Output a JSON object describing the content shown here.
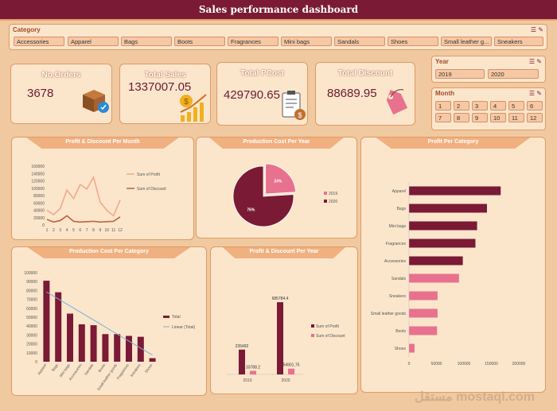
{
  "title": "Sales performance dashboard",
  "watermark": "مستقل mostaql.com",
  "category_slicer": {
    "title": "Category",
    "items": [
      "Accessories",
      "Apparel",
      "Bags",
      "Boots",
      "Fragrances",
      "Mini bags",
      "Sandals",
      "Shoes",
      "Small leather g...",
      "Sneakers"
    ]
  },
  "year_slicer": {
    "title": "Year",
    "items": [
      "2019",
      "2020"
    ]
  },
  "month_slicer": {
    "title": "Month",
    "items": [
      "1",
      "2",
      "3",
      "4",
      "5",
      "6",
      "7",
      "8",
      "9",
      "10",
      "11",
      "12"
    ]
  },
  "kpis": [
    {
      "title": "No.Orders",
      "value": "3678",
      "icon": "box-check-icon"
    },
    {
      "title": "Total Sales",
      "value": "1337007.05",
      "icon": "money-growth-icon"
    },
    {
      "title": "Total PCost",
      "value": "429790.65",
      "icon": "clipboard-money-icon"
    },
    {
      "title": "Total Discount",
      "value": "88689.95",
      "icon": "price-tag-icon"
    }
  ],
  "colors": {
    "maroon": "#7a1a35",
    "pink": "#e8718e",
    "peach": "#f0b080",
    "line_profit": "#f4a88a",
    "line_discount": "#c0603a"
  },
  "chart_data": [
    {
      "id": "profit_discount_month",
      "type": "line",
      "title": "Profit & Discount Per Month",
      "categories": [
        "1",
        "2",
        "3",
        "4",
        "5",
        "6",
        "7",
        "8",
        "9",
        "10",
        "11",
        "12"
      ],
      "yticks": [
        "0",
        "20000",
        "40000",
        "60000",
        "80000",
        "100000",
        "120000",
        "140000",
        "160000"
      ],
      "ylim": [
        0,
        160000
      ],
      "series": [
        {
          "name": "Sum of Profit",
          "values": [
            40000,
            28000,
            45000,
            95000,
            72000,
            110000,
            98000,
            130000,
            62000,
            40000,
            25000,
            68000
          ]
        },
        {
          "name": "Sum of Discount",
          "values": [
            15000,
            8000,
            12000,
            25000,
            10000,
            8000,
            9000,
            10000,
            8000,
            9000,
            10000,
            22000
          ]
        }
      ]
    },
    {
      "id": "production_cost_year",
      "type": "pie",
      "title": "Production Cost Per Year",
      "labels": [
        "2019",
        "2020"
      ],
      "values": [
        24,
        76
      ],
      "data_labels": [
        "24%",
        "76%"
      ]
    },
    {
      "id": "profit_per_category",
      "type": "bar",
      "orientation": "horizontal",
      "title": "Profit Per Category",
      "categories": [
        "Apparel",
        "Bags",
        "Mini bags",
        "Fragrances",
        "Accessories",
        "Sandals",
        "Sneakers",
        "Small leather goods",
        "Boots",
        "Shoes"
      ],
      "values": [
        167000,
        142000,
        124000,
        121000,
        98000,
        91000,
        52000,
        52000,
        51000,
        10000
      ],
      "xticks": [
        "0",
        "50000",
        "100000",
        "150000",
        "200000"
      ],
      "xlim": [
        0,
        200000
      ]
    },
    {
      "id": "production_cost_category",
      "type": "bar",
      "title": "Production Cost Per Category",
      "categories": [
        "Apparel",
        "Bags",
        "Mini bags",
        "Accessories",
        "Sandals",
        "Boots",
        "Small leather goods",
        "Fragrances",
        "Sneakers",
        "Shoes"
      ],
      "values": [
        91000,
        78000,
        54000,
        42000,
        41000,
        31000,
        31000,
        29000,
        28000,
        4000
      ],
      "yticks": [
        "0",
        "10000",
        "20000",
        "30000",
        "40000",
        "50000",
        "60000",
        "70000",
        "80000",
        "90000",
        "100000"
      ],
      "ylim": [
        0,
        100000
      ],
      "legend": [
        "Total",
        "Linear (Total)"
      ]
    },
    {
      "id": "profit_discount_year",
      "type": "bar",
      "title": "Profit & Discount Per Year",
      "categories": [
        "2019",
        "2020"
      ],
      "series": [
        {
          "name": "Sum of Profit",
          "values": [
            235492,
            685784.4
          ]
        },
        {
          "name": "Sum of Discount",
          "values": [
            33788.2,
            54901.75
          ]
        }
      ],
      "data_labels": [
        [
          "235492",
          "33788.2"
        ],
        [
          "685784.4",
          "54901.75"
        ]
      ],
      "ylim": [
        0,
        800000
      ]
    }
  ]
}
